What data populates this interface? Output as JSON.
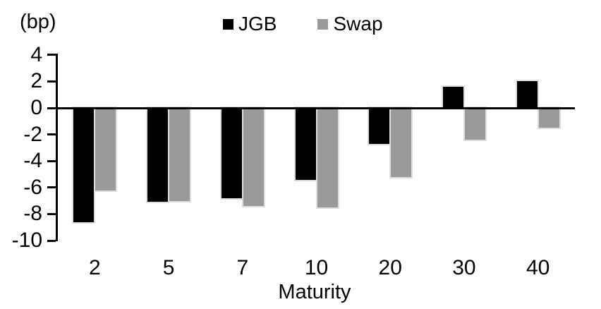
{
  "unit_label": "(bp)",
  "chart_data": {
    "type": "bar",
    "title": "",
    "categories": [
      "2",
      "5",
      "7",
      "10",
      "20",
      "30",
      "40"
    ],
    "series": [
      {
        "name": "JGB",
        "color": "#000000",
        "values": [
          -8.6,
          -7.1,
          -6.8,
          -5.4,
          -2.7,
          1.6,
          2.0
        ]
      },
      {
        "name": "Swap",
        "color": "#9A9A9A",
        "values": [
          -6.2,
          -7.0,
          -7.4,
          -7.5,
          -5.2,
          -2.4,
          -1.5
        ]
      }
    ],
    "xlabel": "Maturity",
    "ylabel": "(bp)",
    "ylim": [
      -10,
      4
    ],
    "yticks": [
      4,
      2,
      0,
      -2,
      -4,
      -6,
      -8,
      -10
    ],
    "ytick_step": 2,
    "legend_position": "top-center",
    "grid": false,
    "axis_color": "#000000",
    "background_color": "#ffffff"
  }
}
